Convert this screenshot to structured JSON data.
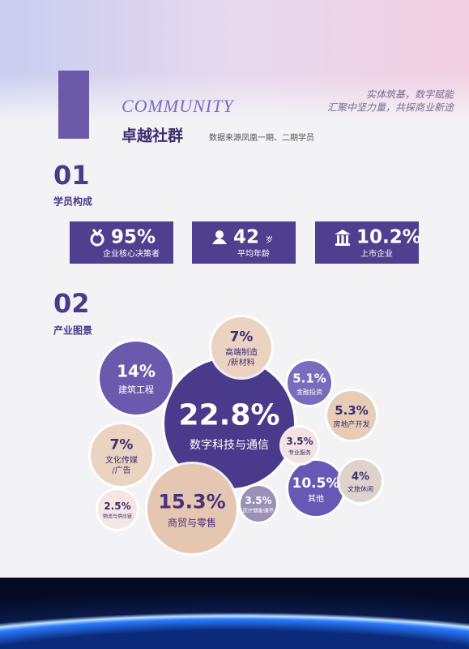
{
  "header": {
    "brand": "COMMUNITY",
    "title": "卓越社群",
    "subtitle": "数据来源凤凰一期、二期学员",
    "slogan": [
      "实体筑基，数字赋能",
      "汇聚中坚力量，共探商业新途"
    ]
  },
  "sections": [
    {
      "number": "01",
      "title": "学员构成",
      "stats": [
        {
          "value": "95%",
          "label": "企业核心决策者"
        },
        {
          "value": "42",
          "unit": "岁",
          "label": "平均年龄"
        },
        {
          "value": "10.2%",
          "label": "上市企业"
        }
      ]
    },
    {
      "number": "02",
      "title": "产业图景",
      "industries": [
        {
          "value": "22.8%",
          "label": [
            "数字科技与通信"
          ]
        },
        {
          "value": "15.3%",
          "label": [
            "商贸与零售"
          ]
        },
        {
          "value": "14%",
          "label": [
            "建筑工程"
          ]
        },
        {
          "value": "10.5%",
          "label": [
            "其他"
          ]
        },
        {
          "value": "7%",
          "label": [
            "高端制造",
            "/新材料"
          ]
        },
        {
          "value": "7%",
          "label": [
            "文化传媒",
            "/广告"
          ]
        },
        {
          "value": "5.3%",
          "label": [
            "房地产开发"
          ]
        },
        {
          "value": "5.1%",
          "label": [
            "金融投资"
          ]
        },
        {
          "value": "4%",
          "label": [
            "文旅休闲"
          ]
        },
        {
          "value": "3.5%",
          "label": [
            "专业服务"
          ]
        },
        {
          "value": "3.5%",
          "label": [
            "医疗健康/康养"
          ]
        },
        {
          "value": "2.5%",
          "label": [
            "物流与供应链"
          ]
        }
      ]
    }
  ]
}
